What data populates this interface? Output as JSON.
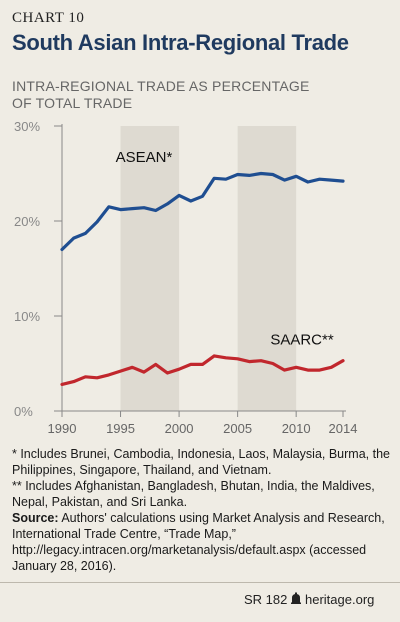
{
  "header": {
    "chart_number": "CHART 10",
    "title": "South Asian Intra-Regional Trade",
    "subtitle": "INTRA-REGIONAL TRADE AS PERCENTAGE OF TOTAL TRADE"
  },
  "chart_data": {
    "type": "line",
    "ylim": [
      0,
      30
    ],
    "xlim": [
      1990,
      2014
    ],
    "yticks": [
      "0%",
      "10%",
      "20%",
      "30%"
    ],
    "xticks": [
      "1990",
      "1995",
      "2000",
      "2005",
      "2010",
      "2014"
    ],
    "shaded_ranges": [
      [
        1995,
        2000
      ],
      [
        2005,
        2010
      ]
    ],
    "x": [
      1990,
      1991,
      1992,
      1993,
      1994,
      1995,
      1996,
      1997,
      1998,
      1999,
      2000,
      2001,
      2002,
      2003,
      2004,
      2005,
      2006,
      2007,
      2008,
      2009,
      2010,
      2011,
      2012,
      2013,
      2014
    ],
    "series": [
      {
        "name": "ASEAN*",
        "color": "#1f4e91",
        "values": [
          17.0,
          18.2,
          18.7,
          19.9,
          21.5,
          21.2,
          21.3,
          21.4,
          21.1,
          21.8,
          22.7,
          22.1,
          22.6,
          24.5,
          24.4,
          24.9,
          24.8,
          25.0,
          24.9,
          24.3,
          24.7,
          24.1,
          24.4,
          24.3,
          24.2
        ]
      },
      {
        "name": "SAARC**",
        "color": "#c1272d",
        "values": [
          2.8,
          3.1,
          3.6,
          3.5,
          3.8,
          4.2,
          4.6,
          4.1,
          4.9,
          4.0,
          4.4,
          4.9,
          4.9,
          5.8,
          5.6,
          5.5,
          5.2,
          5.3,
          5.0,
          4.3,
          4.6,
          4.3,
          4.3,
          4.6,
          5.3
        ]
      }
    ]
  },
  "notes": {
    "asean_note": "* Includes Brunei, Cambodia, Indonesia, Laos, Malaysia, Burma, the Philippines, Singapore, Thailand, and Vietnam.",
    "saarc_note": "** Includes Afghanistan, Bangladesh, Bhutan, India, the Maldives, Nepal, Pakistan, and Sri Lanka.",
    "source_label": "Source:",
    "source_text": "Authors' calculations using Market Analysis and Research, International Trade Centre, “Trade Map,” http://legacy.intracen.org/marketanalysis/default.aspx (accessed January 28, 2016)."
  },
  "footer": {
    "report_code": "SR 182",
    "site": "heritage.org",
    "logo_icon": "bell-icon"
  }
}
